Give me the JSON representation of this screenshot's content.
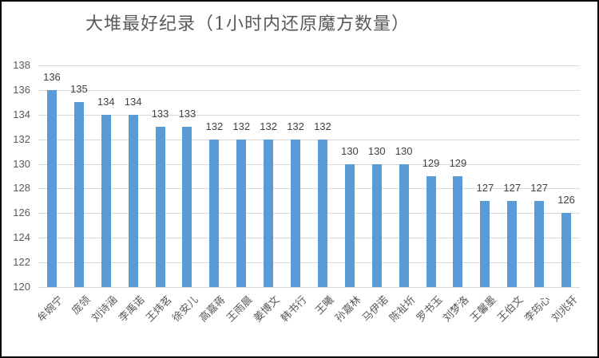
{
  "chart_data": {
    "type": "bar",
    "title": "大堆最好纪录（1小时内还原魔方数量）",
    "xlabel": "",
    "ylabel": "",
    "ylim": [
      120,
      138
    ],
    "yticks": [
      120,
      122,
      124,
      126,
      128,
      130,
      132,
      134,
      136,
      138
    ],
    "grid": true,
    "legend": null,
    "bar_color": "#5b9bd5",
    "categories": [
      "牟婉宁",
      "庞领",
      "刘诗涵",
      "李禹诺",
      "王炜茗",
      "徐安儿",
      "高嘉蒋",
      "王雨晨",
      "姜博文",
      "韩书行",
      "王曦",
      "孙嘉林",
      "马伊诺",
      "陈祉圻",
      "罗书玉",
      "刘梦洛",
      "王馨墨",
      "王伯文",
      "李筠心",
      "刘兆轩"
    ],
    "values": [
      136,
      135,
      134,
      134,
      133,
      133,
      132,
      132,
      132,
      132,
      132,
      130,
      130,
      130,
      129,
      129,
      127,
      127,
      127,
      126
    ]
  }
}
